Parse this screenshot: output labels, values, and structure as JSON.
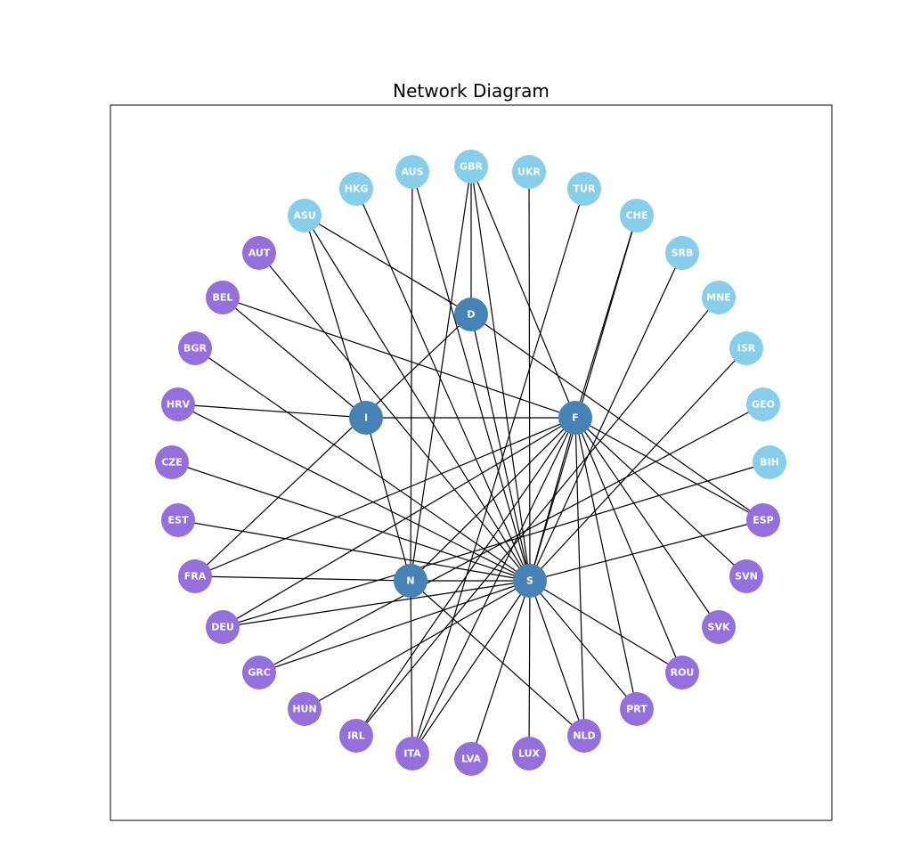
{
  "title": "Network Diagram",
  "colors": {
    "hub": "#4682B4",
    "light_blue": "#87CEEB",
    "purple": "#9370DB",
    "edge": "#000000"
  },
  "nodes": [
    {
      "id": "D",
      "group": "hub"
    },
    {
      "id": "I",
      "group": "hub"
    },
    {
      "id": "F",
      "group": "hub"
    },
    {
      "id": "N",
      "group": "hub"
    },
    {
      "id": "S",
      "group": "hub"
    },
    {
      "id": "GBR",
      "group": "light_blue"
    },
    {
      "id": "UKR",
      "group": "light_blue"
    },
    {
      "id": "TUR",
      "group": "light_blue"
    },
    {
      "id": "CHE",
      "group": "light_blue"
    },
    {
      "id": "SRB",
      "group": "light_blue"
    },
    {
      "id": "MNE",
      "group": "light_blue"
    },
    {
      "id": "ISR",
      "group": "light_blue"
    },
    {
      "id": "GEO",
      "group": "light_blue"
    },
    {
      "id": "BIH",
      "group": "light_blue"
    },
    {
      "id": "ASU",
      "group": "light_blue"
    },
    {
      "id": "HKG",
      "group": "light_blue"
    },
    {
      "id": "AUS",
      "group": "light_blue"
    },
    {
      "id": "ESP",
      "group": "purple"
    },
    {
      "id": "SVN",
      "group": "purple"
    },
    {
      "id": "SVK",
      "group": "purple"
    },
    {
      "id": "ROU",
      "group": "purple"
    },
    {
      "id": "PRT",
      "group": "purple"
    },
    {
      "id": "NLD",
      "group": "purple"
    },
    {
      "id": "LUX",
      "group": "purple"
    },
    {
      "id": "LVA",
      "group": "purple"
    },
    {
      "id": "ITA",
      "group": "purple"
    },
    {
      "id": "IRL",
      "group": "purple"
    },
    {
      "id": "HUN",
      "group": "purple"
    },
    {
      "id": "GRC",
      "group": "purple"
    },
    {
      "id": "DEU",
      "group": "purple"
    },
    {
      "id": "FRA",
      "group": "purple"
    },
    {
      "id": "EST",
      "group": "purple"
    },
    {
      "id": "CZE",
      "group": "purple"
    },
    {
      "id": "HRV",
      "group": "purple"
    },
    {
      "id": "BGR",
      "group": "purple"
    },
    {
      "id": "BEL",
      "group": "purple"
    },
    {
      "id": "AUT",
      "group": "purple"
    }
  ],
  "edges": [
    [
      "GBR",
      "D"
    ],
    [
      "GBR",
      "F"
    ],
    [
      "GBR",
      "S"
    ],
    [
      "GBR",
      "N"
    ],
    [
      "AUS",
      "N"
    ],
    [
      "AUS",
      "S"
    ],
    [
      "UKR",
      "S"
    ],
    [
      "TUR",
      "ITA"
    ],
    [
      "CHE",
      "F"
    ],
    [
      "CHE",
      "S"
    ],
    [
      "SRB",
      "S"
    ],
    [
      "MNE",
      "IRL"
    ],
    [
      "ISR",
      "S"
    ],
    [
      "GEO",
      "GRC"
    ],
    [
      "BIH",
      "DEU"
    ],
    [
      "ASU",
      "D"
    ],
    [
      "ASU",
      "S"
    ],
    [
      "ASU",
      "I"
    ],
    [
      "HKG",
      "S"
    ],
    [
      "AUT",
      "S"
    ],
    [
      "BEL",
      "F"
    ],
    [
      "BEL",
      "I"
    ],
    [
      "BGR",
      "S"
    ],
    [
      "HRV",
      "I"
    ],
    [
      "HRV",
      "S"
    ],
    [
      "CZE",
      "S"
    ],
    [
      "EST",
      "S"
    ],
    [
      "FRA",
      "N"
    ],
    [
      "FRA",
      "D"
    ],
    [
      "FRA",
      "F"
    ],
    [
      "DEU",
      "S"
    ],
    [
      "DEU",
      "F"
    ],
    [
      "GRC",
      "S"
    ],
    [
      "HUN",
      "S"
    ],
    [
      "IRL",
      "F"
    ],
    [
      "ITA",
      "S"
    ],
    [
      "ITA",
      "N"
    ],
    [
      "ITA",
      "F"
    ],
    [
      "LVA",
      "S"
    ],
    [
      "LUX",
      "S"
    ],
    [
      "NLD",
      "S"
    ],
    [
      "NLD",
      "N"
    ],
    [
      "NLD",
      "F"
    ],
    [
      "PRT",
      "S"
    ],
    [
      "PRT",
      "F"
    ],
    [
      "ROU",
      "S"
    ],
    [
      "ROU",
      "F"
    ],
    [
      "SVK",
      "F"
    ],
    [
      "SVN",
      "F"
    ],
    [
      "ESP",
      "S"
    ],
    [
      "ESP",
      "F"
    ],
    [
      "ESP",
      "D"
    ],
    [
      "I",
      "F"
    ],
    [
      "I",
      "N"
    ],
    [
      "F",
      "S"
    ],
    [
      "F",
      "N"
    ],
    [
      "N",
      "S"
    ],
    [
      "D",
      "S"
    ]
  ]
}
